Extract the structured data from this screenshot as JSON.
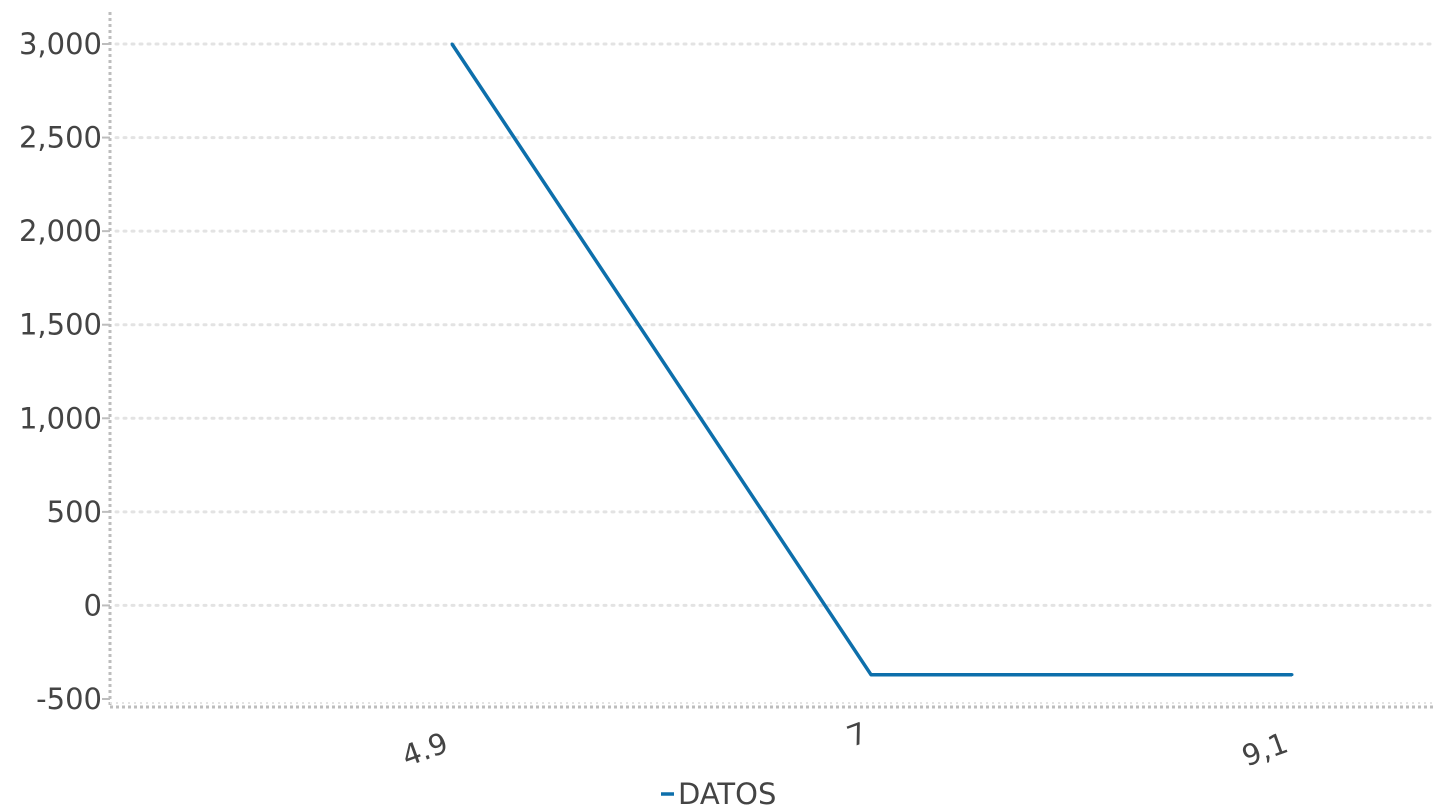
{
  "chart_data": {
    "type": "line",
    "x": [
      "4.9",
      "7",
      "9,1"
    ],
    "series": [
      {
        "name": "DATOS",
        "values": [
          3000,
          -370,
          -370
        ],
        "color": "#0d6fab"
      }
    ],
    "yticks": [
      3000,
      2500,
      2000,
      1500,
      1000,
      500,
      0,
      -500
    ],
    "ytick_labels": [
      "3,000",
      "2,500",
      "2,000",
      "1,500",
      "1,000",
      "500",
      "0",
      "-500"
    ],
    "ylim": [
      -500,
      3000
    ],
    "grid": true,
    "grid_style": "dotted",
    "grid_color": "#e3e3e3",
    "axis_color": "#bdbdbd",
    "text_color": "#444444",
    "legend_position": "bottom-center",
    "xtick_rotation": "slanted"
  }
}
